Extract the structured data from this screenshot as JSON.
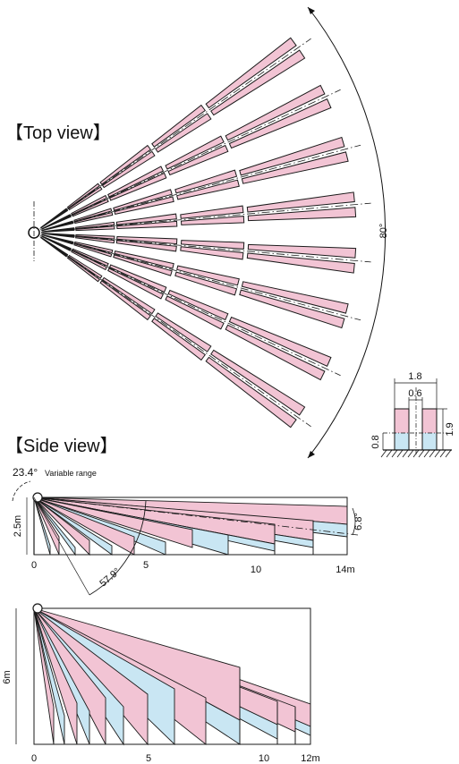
{
  "top_view": {
    "title": "【Top view】",
    "angle_label": "80°"
  },
  "detail": {
    "width_outer": "1.8",
    "width_inner": "0.6",
    "height_low": "0.8",
    "height_high": "1.9"
  },
  "side_view": {
    "title": "【Side view】",
    "angle_top": "23.4°",
    "variable_range": "Variable range",
    "height": "2.5m",
    "angle_right": "6.8°",
    "angle_bottom": "57.9°",
    "x_ticks": [
      "0",
      "5",
      "10",
      "14m"
    ]
  },
  "second_view": {
    "height": "6m",
    "x_ticks": [
      "0",
      "5",
      "10",
      "12m"
    ]
  },
  "colors": {
    "pink": "#f2c4d4",
    "blue": "#c9e6f3",
    "line": "#1a1a1a"
  }
}
